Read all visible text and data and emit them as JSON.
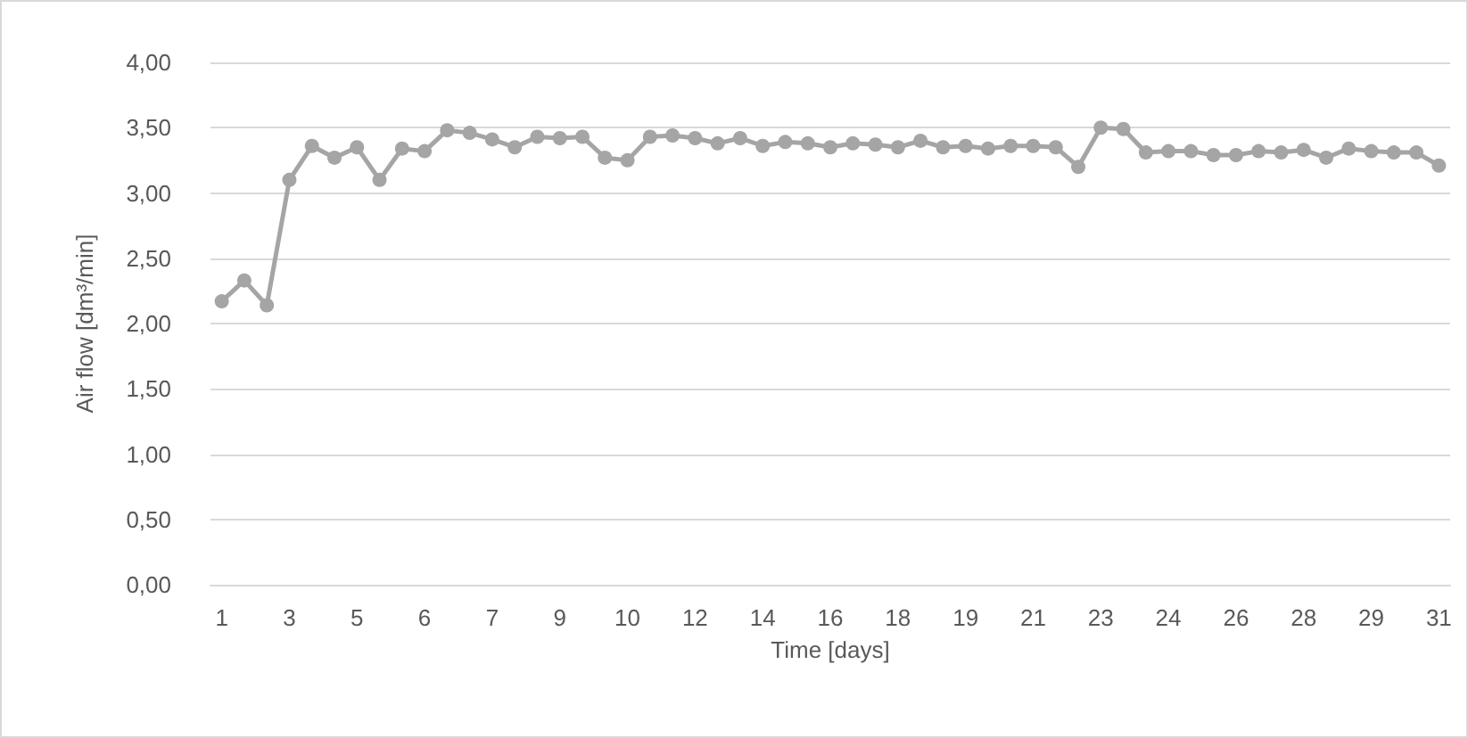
{
  "chart_data": {
    "type": "line",
    "xlabel": "Time [days]",
    "ylabel": "Air flow [dm³/min]",
    "categories": [
      "1",
      null,
      null,
      "3",
      null,
      null,
      "5",
      null,
      null,
      "6",
      null,
      null,
      "7",
      null,
      null,
      "9",
      null,
      null,
      "10",
      null,
      null,
      "12",
      null,
      null,
      "14",
      null,
      null,
      "16",
      null,
      null,
      "18",
      null,
      null,
      "19",
      null,
      null,
      "21",
      null,
      null,
      "23",
      null,
      null,
      "24",
      null,
      null,
      "26",
      null,
      null,
      "28",
      null,
      null,
      "29",
      null,
      null,
      "31"
    ],
    "series": [
      {
        "color": "#a5a5a5",
        "values": [
          2.17,
          2.33,
          2.14,
          3.1,
          3.36,
          3.27,
          3.35,
          3.1,
          3.34,
          3.32,
          3.48,
          3.46,
          3.41,
          3.35,
          3.43,
          3.42,
          3.43,
          3.27,
          3.25,
          3.43,
          3.44,
          3.42,
          3.38,
          3.42,
          3.36,
          3.39,
          3.38,
          3.35,
          3.38,
          3.37,
          3.35,
          3.4,
          3.35,
          3.36,
          3.34,
          3.36,
          3.36,
          3.35,
          3.2,
          3.5,
          3.49,
          3.31,
          3.32,
          3.32,
          3.29,
          3.29,
          3.32,
          3.31,
          3.33,
          3.27,
          3.34,
          3.32,
          3.31,
          3.31,
          3.21
        ]
      }
    ],
    "ylim": [
      0,
      4
    ],
    "yticks": [
      {
        "value": 0,
        "label": "0,00"
      },
      {
        "value": 0.5,
        "label": "0,50"
      },
      {
        "value": 1,
        "label": "1,00"
      },
      {
        "value": 1.5,
        "label": "1,50"
      },
      {
        "value": 2,
        "label": "2,00"
      },
      {
        "value": 2.5,
        "label": "2,50"
      },
      {
        "value": 3,
        "label": "3,00"
      },
      {
        "value": 3.5,
        "label": "3,50"
      },
      {
        "value": 4,
        "label": "4,00"
      }
    ],
    "grid": "y",
    "marker": "circle",
    "line_style": "solid"
  }
}
